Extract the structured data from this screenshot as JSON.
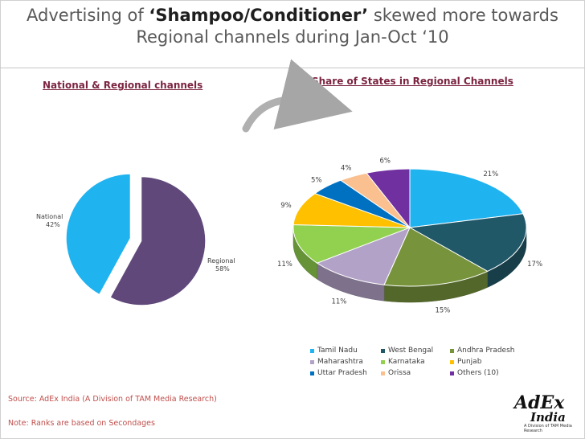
{
  "title": {
    "line1_pre": "Advertising of ",
    "line1_bold": "‘Shampoo/Conditioner’",
    "line1_post": " skewed more towards",
    "line2": "Regional channels during Jan-Oct ‘10"
  },
  "footer": {
    "source": "Source: AdEx India (A Division of TAM Media Research)",
    "note": "Note: Ranks are based on Secondages"
  },
  "logo": {
    "text": "AdEx",
    "sub": "India",
    "small": "A Division of TAM Media Research"
  },
  "chart_data": [
    {
      "type": "pie",
      "title": "National & Regional channels",
      "labels": [
        "National",
        "Regional"
      ],
      "values": [
        42,
        58
      ],
      "value_labels": [
        "42%",
        "58%"
      ],
      "colors": [
        "#1fb3f0",
        "#60497a"
      ],
      "exploded": true
    },
    {
      "type": "pie",
      "title": "Share of States in Regional Channels",
      "three_d": true,
      "labels": [
        "Tamil Nadu",
        "West Bengal",
        "Andhra Pradesh",
        "Maharashtra",
        "Karnataka",
        "Punjab",
        "Uttar Pradesh",
        "Orissa",
        "Others (10)"
      ],
      "values": [
        21,
        17,
        15,
        11,
        11,
        9,
        5,
        4,
        6
      ],
      "value_labels": [
        "21%",
        "17%",
        "15%",
        "11%",
        "11%",
        "9%",
        "5%",
        "4%",
        "6%"
      ],
      "colors": [
        "#1fb3f0",
        "#215868",
        "#77933c",
        "#b3a2c7",
        "#92d050",
        "#ffc000",
        "#0070c0",
        "#fac090",
        "#7030a0"
      ],
      "legend": "bottom"
    }
  ]
}
